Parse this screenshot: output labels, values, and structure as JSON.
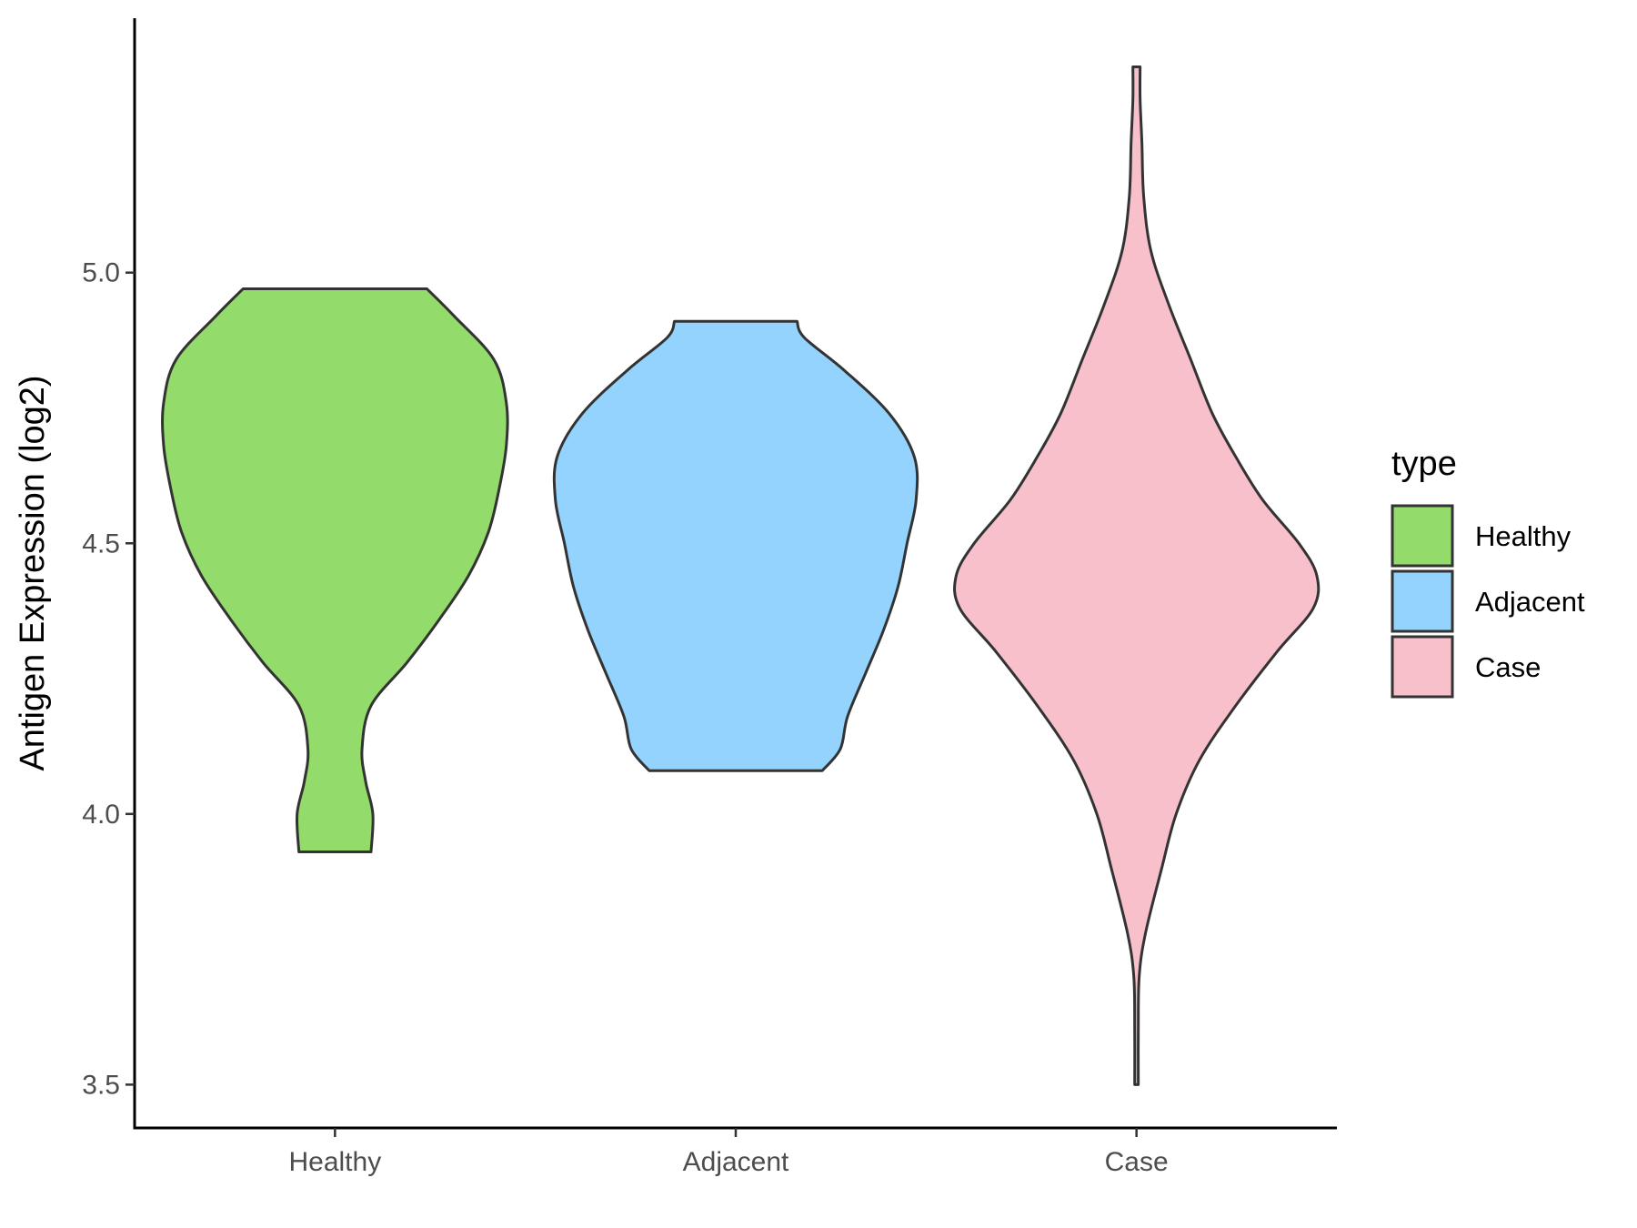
{
  "chart_data": {
    "type": "violin",
    "xlabel": "",
    "ylabel": "Antigen Expression (log2)",
    "ylim": [
      3.42,
      5.47
    ],
    "yticks": [
      3.5,
      4.0,
      4.5,
      5.0
    ],
    "ytick_labels": [
      "3.5",
      "4.0",
      "4.5",
      "5.0"
    ],
    "categories": [
      "Healthy",
      "Adjacent",
      "Case"
    ],
    "legend": {
      "title": "type",
      "position": "right",
      "entries": [
        "Healthy",
        "Adjacent",
        "Case"
      ]
    },
    "series": [
      {
        "name": "Healthy",
        "color": "#93db6a",
        "min": 3.93,
        "max": 4.97,
        "density_profile": [
          [
            3.93,
            0.2
          ],
          [
            4.0,
            0.21
          ],
          [
            4.06,
            0.17
          ],
          [
            4.12,
            0.15
          ],
          [
            4.2,
            0.2
          ],
          [
            4.28,
            0.4
          ],
          [
            4.36,
            0.58
          ],
          [
            4.44,
            0.74
          ],
          [
            4.52,
            0.85
          ],
          [
            4.6,
            0.91
          ],
          [
            4.68,
            0.95
          ],
          [
            4.76,
            0.95
          ],
          [
            4.84,
            0.88
          ],
          [
            4.92,
            0.66
          ],
          [
            4.97,
            0.51
          ]
        ]
      },
      {
        "name": "Adjacent",
        "color": "#93d3fd",
        "min": 4.08,
        "max": 4.91,
        "density_profile": [
          [
            4.08,
            0.48
          ],
          [
            4.12,
            0.58
          ],
          [
            4.18,
            0.62
          ],
          [
            4.26,
            0.72
          ],
          [
            4.34,
            0.82
          ],
          [
            4.42,
            0.9
          ],
          [
            4.5,
            0.95
          ],
          [
            4.58,
            1.0
          ],
          [
            4.66,
            0.99
          ],
          [
            4.74,
            0.85
          ],
          [
            4.82,
            0.6
          ],
          [
            4.88,
            0.38
          ],
          [
            4.91,
            0.34
          ]
        ]
      },
      {
        "name": "Case",
        "color": "#f7c0cb",
        "min": 3.5,
        "max": 5.38,
        "density_profile": [
          [
            3.5,
            0.01
          ],
          [
            3.6,
            0.01
          ],
          [
            3.7,
            0.015
          ],
          [
            3.78,
            0.05
          ],
          [
            3.9,
            0.14
          ],
          [
            4.0,
            0.22
          ],
          [
            4.1,
            0.35
          ],
          [
            4.2,
            0.55
          ],
          [
            4.3,
            0.78
          ],
          [
            4.38,
            0.98
          ],
          [
            4.44,
            1.0
          ],
          [
            4.5,
            0.9
          ],
          [
            4.58,
            0.7
          ],
          [
            4.66,
            0.55
          ],
          [
            4.74,
            0.42
          ],
          [
            4.84,
            0.3
          ],
          [
            4.94,
            0.18
          ],
          [
            5.04,
            0.08
          ],
          [
            5.14,
            0.04
          ],
          [
            5.24,
            0.03
          ],
          [
            5.32,
            0.02
          ],
          [
            5.38,
            0.02
          ]
        ]
      }
    ]
  }
}
